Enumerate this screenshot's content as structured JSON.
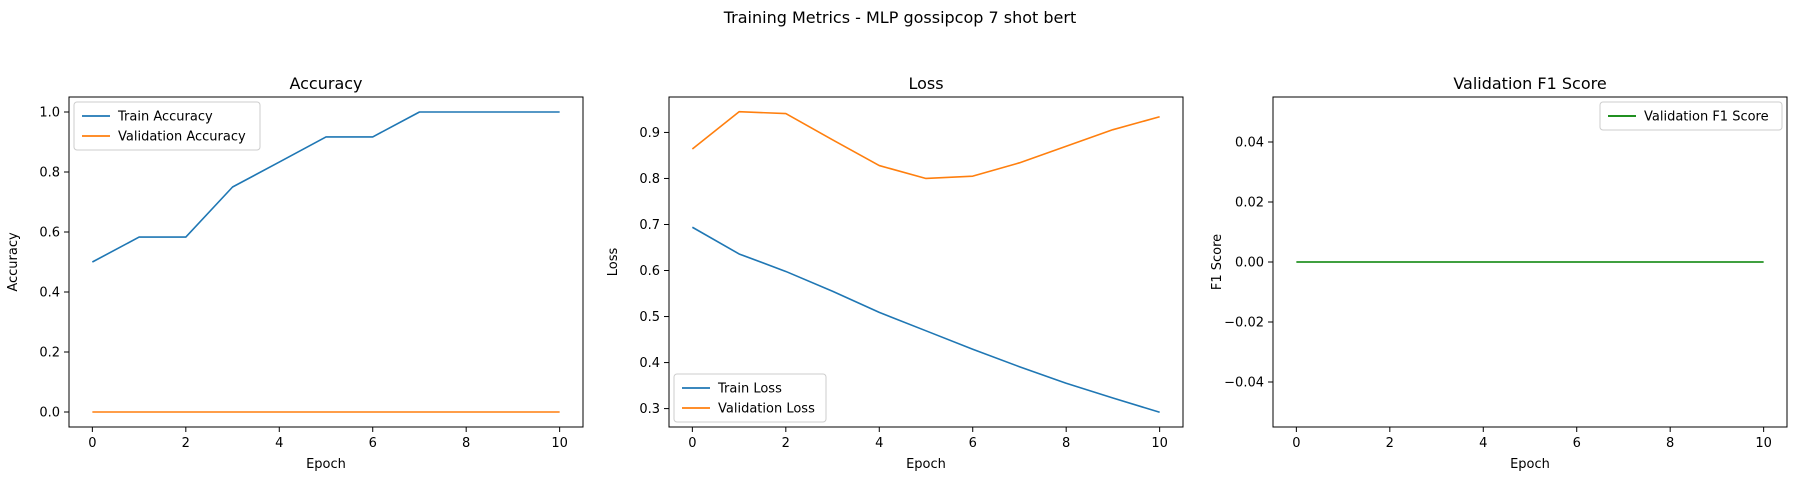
{
  "figure": {
    "suptitle": "Training Metrics - MLP gossipcop 7 shot bert"
  },
  "chart_data": [
    {
      "type": "line",
      "title": "Accuracy",
      "xlabel": "Epoch",
      "ylabel": "Accuracy",
      "xlim": [
        -0.5,
        10.5
      ],
      "ylim": [
        -0.05,
        1.05
      ],
      "xticks": [
        0,
        2,
        4,
        6,
        8,
        10
      ],
      "yticks": [
        0.0,
        0.2,
        0.4,
        0.6,
        0.8,
        1.0
      ],
      "ytick_labels": [
        "0.0",
        "0.2",
        "0.4",
        "0.6",
        "0.8",
        "1.0"
      ],
      "legend_position": "top-left",
      "grid": false,
      "x": [
        0,
        1,
        2,
        3,
        4,
        5,
        6,
        7,
        8,
        9,
        10
      ],
      "series": [
        {
          "name": "Train Accuracy",
          "color": "#1f77b4",
          "values": [
            0.5,
            0.583,
            0.583,
            0.75,
            0.833,
            0.917,
            0.917,
            1.0,
            1.0,
            1.0,
            1.0
          ]
        },
        {
          "name": "Validation Accuracy",
          "color": "#ff7f0e",
          "values": [
            0,
            0,
            0,
            0,
            0,
            0,
            0,
            0,
            0,
            0,
            0
          ]
        }
      ]
    },
    {
      "type": "line",
      "title": "Loss",
      "xlabel": "Epoch",
      "ylabel": "Loss",
      "xlim": [
        -0.5,
        10.5
      ],
      "ylim": [
        0.26,
        0.977
      ],
      "xticks": [
        0,
        2,
        4,
        6,
        8,
        10
      ],
      "yticks": [
        0.3,
        0.4,
        0.5,
        0.6,
        0.7,
        0.8,
        0.9
      ],
      "ytick_labels": [
        "0.3",
        "0.4",
        "0.5",
        "0.6",
        "0.7",
        "0.8",
        "0.9"
      ],
      "legend_position": "bottom-left",
      "grid": false,
      "x": [
        0,
        1,
        2,
        3,
        4,
        5,
        6,
        7,
        8,
        9,
        10
      ],
      "series": [
        {
          "name": "Train Loss",
          "color": "#1f77b4",
          "values": [
            0.694,
            0.636,
            0.598,
            0.555,
            0.509,
            0.469,
            0.429,
            0.391,
            0.355,
            0.323,
            0.292
          ]
        },
        {
          "name": "Validation Loss",
          "color": "#ff7f0e",
          "values": [
            0.864,
            0.945,
            0.941,
            0.884,
            0.828,
            0.8,
            0.805,
            0.834,
            0.87,
            0.906,
            0.934
          ]
        }
      ]
    },
    {
      "type": "line",
      "title": "Validation F1 Score",
      "xlabel": "Epoch",
      "ylabel": "F1 Score",
      "xlim": [
        -0.5,
        10.5
      ],
      "ylim": [
        -0.055,
        0.055
      ],
      "xticks": [
        0,
        2,
        4,
        6,
        8,
        10
      ],
      "yticks": [
        -0.04,
        -0.02,
        0.0,
        0.02,
        0.04
      ],
      "ytick_labels": [
        "−0.04",
        "−0.02",
        "0.00",
        "0.02",
        "0.04"
      ],
      "legend_position": "top-right",
      "grid": false,
      "x": [
        0,
        1,
        2,
        3,
        4,
        5,
        6,
        7,
        8,
        9,
        10
      ],
      "series": [
        {
          "name": "Validation F1 Score",
          "color": "#008000",
          "values": [
            0,
            0,
            0,
            0,
            0,
            0,
            0,
            0,
            0,
            0,
            0
          ]
        }
      ]
    }
  ]
}
